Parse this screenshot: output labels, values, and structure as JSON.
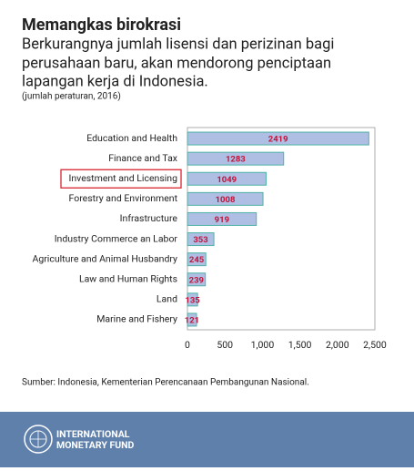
{
  "chart_data": {
    "type": "barh",
    "title": "Memangkas birokrasi",
    "subtitle": [
      "Berkurangnya jumlah lisensi dan perizinan bagi",
      "perusahaan baru, akan mendorong penciptaan",
      "lapangan kerja di Indonesia."
    ],
    "note": "(jumlah peraturan, 2016)",
    "categories": [
      "Education and Health",
      "Finance and Tax",
      "Investment and Licensing",
      "Forestry and Environment",
      "Infrastructure",
      "Industry Commerce an Labor",
      "Agriculture and Animal Husbandry",
      "Law and Human Rights",
      "Land",
      "Marine and Fishery"
    ],
    "values": [
      2419,
      1283,
      1049,
      1008,
      919,
      353,
      245,
      239,
      135,
      121
    ],
    "color": "#aebfe3",
    "edge_color": "#4fb3a6",
    "label_color": "#c0143c",
    "highlight": 2,
    "highlight_color": "#d9252f",
    "xlim": [
      0,
      2500
    ],
    "xticks": [
      0,
      500,
      {
        "value": 1000,
        "label": "1,000"
      },
      {
        "value": 1500,
        "label": "1,500"
      },
      {
        "value": 2000,
        "label": "2,000"
      },
      {
        "value": 2500,
        "label": "2,500"
      }
    ]
  },
  "source": "Sumber: Indonesia, Kementerian Perencanaan Pembangunan Nasional.",
  "footer": {
    "line1": "INTERNATIONAL",
    "line2": "MONETARY FUND"
  }
}
